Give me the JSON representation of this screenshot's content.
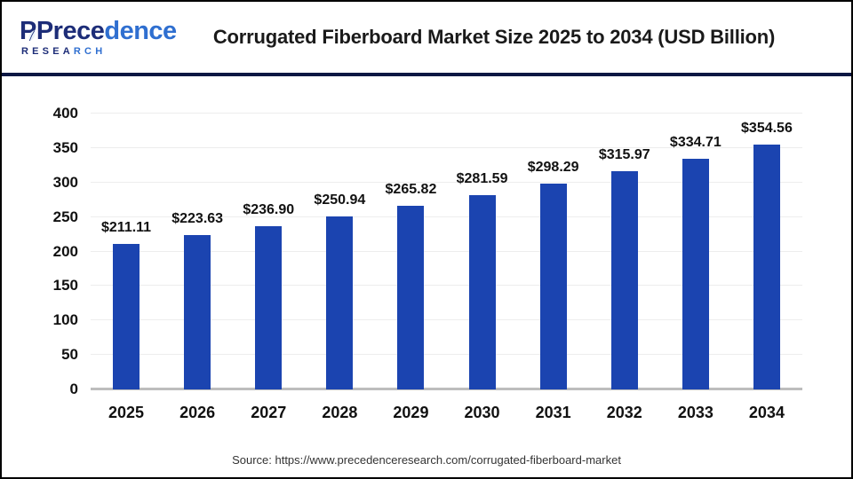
{
  "header": {
    "logo": {
      "name_dark": "Prece",
      "name_blue": "dence",
      "research_dark": "RESEA",
      "research_blue": "RCH",
      "leaf_icon_color": "#eaf4fb",
      "navy": "#1d2d78",
      "blue": "#2f6fd0"
    }
  },
  "chart_data": {
    "type": "bar",
    "title": "Corrugated Fiberboard Market Size 2025 to 2034 (USD Billion)",
    "categories": [
      "2025",
      "2026",
      "2027",
      "2028",
      "2029",
      "2030",
      "2031",
      "2032",
      "2033",
      "2034"
    ],
    "values": [
      211.11,
      223.63,
      236.9,
      250.94,
      265.82,
      281.59,
      298.29,
      315.97,
      334.71,
      354.56
    ],
    "value_labels": [
      "$211.11",
      "$223.63",
      "$236.90",
      "$250.94",
      "$265.82",
      "$281.59",
      "$298.29",
      "$315.97",
      "$334.71",
      "$354.56"
    ],
    "xlabel": "",
    "ylabel": "",
    "ylim": [
      0,
      400
    ],
    "yticks": [
      0,
      50,
      100,
      150,
      200,
      250,
      300,
      350,
      400
    ],
    "grid": true,
    "legend": "none",
    "bar_color": "#1b44b0",
    "gridline_color": "#ededed",
    "baseline_color": "#bdbdbd"
  },
  "footer": {
    "source": "Source: https://www.precedenceresearch.com/corrugated-fiberboard-market"
  }
}
